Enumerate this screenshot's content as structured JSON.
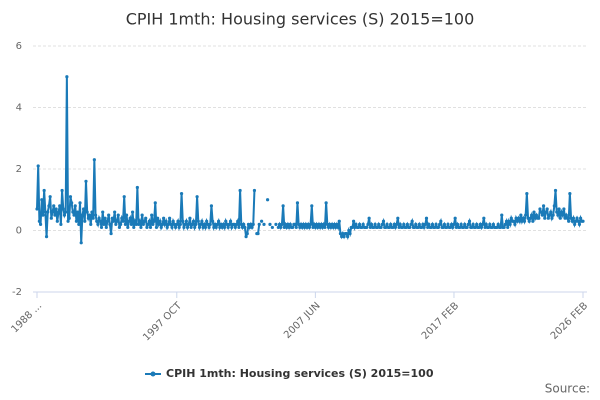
{
  "chart_data": {
    "type": "line",
    "title": "CPIH 1mth: Housing services (S) 2015=100",
    "categories": [
      "1988 ...",
      null,
      null,
      null,
      null,
      null,
      null,
      null,
      null,
      null,
      null,
      null,
      null,
      null,
      null,
      null,
      null,
      null,
      null,
      null,
      null,
      null,
      null,
      null,
      null,
      null,
      null,
      null,
      null,
      null,
      null,
      null,
      null,
      null,
      null,
      null,
      null,
      null,
      null,
      null,
      null,
      null,
      null,
      null,
      null,
      null,
      null,
      null,
      null,
      null,
      null,
      null,
      null,
      null,
      null,
      null,
      null,
      null,
      null,
      null,
      null,
      null,
      null,
      null,
      null,
      null,
      null,
      null,
      null,
      null,
      null,
      null,
      null,
      null,
      null,
      null,
      null,
      null,
      null,
      null,
      null,
      null,
      null,
      null,
      null,
      null,
      null,
      null,
      null,
      null,
      null,
      null,
      null,
      null,
      null,
      null,
      null,
      null,
      null,
      null,
      null,
      null,
      null,
      null,
      null,
      null,
      null,
      null,
      null,
      null,
      null,
      null,
      null,
      null,
      null,
      null,
      null,
      "1997 OCT",
      null,
      null,
      null,
      null,
      null,
      null,
      null,
      null,
      null,
      null,
      null,
      null,
      null,
      null,
      null,
      null,
      null,
      null,
      null,
      null,
      null,
      null,
      null,
      null,
      null,
      null,
      null,
      null,
      null,
      null,
      null,
      null,
      null,
      null,
      null,
      null,
      null,
      null,
      null,
      null,
      null,
      null,
      null,
      null,
      null,
      null,
      null,
      null,
      null,
      null,
      null,
      null,
      null,
      null,
      null,
      null,
      null,
      null,
      null,
      null,
      null,
      null,
      null,
      null,
      null,
      null,
      null,
      null,
      null,
      null,
      null,
      null,
      null,
      null,
      null,
      null,
      null,
      null,
      null,
      null,
      null,
      null,
      null,
      null,
      null,
      null,
      null,
      null,
      null,
      null,
      null,
      null,
      null,
      null,
      null,
      null,
      null,
      null,
      null,
      null,
      null,
      null,
      null,
      null,
      null,
      null,
      null,
      null,
      null,
      null,
      null,
      null,
      null,
      null,
      null,
      "2007 JUN",
      null,
      null,
      null,
      null,
      null,
      null,
      null,
      null,
      null,
      null,
      null,
      null,
      null,
      null,
      null,
      null,
      null,
      null,
      null,
      null,
      null,
      null,
      null,
      null,
      null,
      null,
      null,
      null,
      null,
      null,
      null,
      null,
      null,
      null,
      null,
      null,
      null,
      null,
      null,
      null,
      null,
      null,
      null,
      null,
      null,
      null,
      null,
      null,
      null,
      null,
      null,
      null,
      null,
      null,
      null,
      null,
      null,
      null,
      null,
      null,
      null,
      null,
      null,
      null,
      null,
      null,
      null,
      null,
      null,
      null,
      null,
      null,
      null,
      null,
      null,
      null,
      null,
      null,
      null,
      null,
      null,
      null,
      null,
      null,
      null,
      null,
      null,
      null,
      null,
      null,
      null,
      null,
      null,
      null,
      null,
      null,
      null,
      null,
      null,
      null,
      null,
      null,
      null,
      null,
      null,
      null,
      null,
      null,
      null,
      null,
      null,
      null,
      null,
      null,
      null,
      "2017 FEB",
      null,
      null,
      null,
      null,
      null,
      null,
      null,
      null,
      null,
      null,
      null,
      null,
      null,
      null,
      null,
      null,
      null,
      null,
      null,
      null,
      null,
      null,
      null,
      null,
      null,
      null,
      null,
      null,
      null,
      null,
      null,
      null,
      null,
      null,
      null,
      null,
      null,
      null,
      null,
      null,
      null,
      null,
      null,
      null,
      null,
      null,
      null,
      null,
      null,
      null,
      null,
      null,
      null,
      null,
      null,
      null,
      null,
      null,
      null,
      null,
      null,
      null,
      null,
      null,
      null,
      null,
      null,
      null,
      null,
      null,
      null,
      null,
      null,
      null,
      null,
      null,
      null,
      null,
      null,
      null,
      null,
      null,
      null,
      null,
      null,
      null,
      null,
      null,
      null,
      null,
      null,
      null,
      null,
      null,
      null,
      null,
      null,
      null,
      null,
      null,
      null,
      null,
      null,
      null,
      null,
      null,
      null,
      "2026 FEB"
    ],
    "series": [
      {
        "name": "CPIH 1mth: Housing services (S) 2015=100",
        "color": "#1a7ab8",
        "values": [
          0.7,
          2.1,
          0.3,
          0.2,
          1.0,
          0.5,
          1.3,
          0.6,
          -0.2,
          0.6,
          0.8,
          1.1,
          0.4,
          0.6,
          0.8,
          0.5,
          0.7,
          0.3,
          0.6,
          0.8,
          0.2,
          1.3,
          0.7,
          0.5,
          0.6,
          5.0,
          0.3,
          0.4,
          1.1,
          0.9,
          0.6,
          0.5,
          0.8,
          0.3,
          0.6,
          0.2,
          0.9,
          -0.4,
          0.5,
          0.7,
          0.3,
          1.6,
          0.6,
          0.4,
          0.5,
          0.2,
          0.6,
          0.4,
          2.3,
          0.5,
          0.3,
          0.2,
          0.4,
          0.3,
          0.1,
          0.6,
          0.2,
          0.4,
          0.1,
          0.3,
          0.5,
          0.2,
          -0.1,
          0.4,
          0.3,
          0.6,
          0.2,
          0.3,
          0.5,
          0.1,
          0.2,
          0.4,
          0.3,
          1.1,
          0.2,
          0.5,
          0.1,
          0.3,
          0.4,
          0.2,
          0.6,
          0.1,
          0.3,
          0.2,
          1.4,
          0.2,
          0.3,
          0.1,
          0.5,
          0.2,
          0.3,
          0.4,
          0.1,
          0.2,
          0.3,
          0.1,
          0.5,
          0.2,
          0.3,
          0.9,
          0.1,
          0.4,
          0.2,
          0.3,
          0.1,
          0.2,
          0.4,
          0.2,
          0.3,
          0.1,
          0.2,
          0.4,
          0.2,
          0.1,
          0.3,
          0.2,
          0.1,
          0.2,
          0.3,
          0.1,
          0.2,
          1.2,
          0.3,
          0.1,
          0.2,
          0.3,
          0.1,
          0.2,
          0.4,
          0.1,
          0.2,
          0.3,
          0.1,
          0.2,
          1.1,
          0.3,
          0.1,
          0.2,
          0.3,
          0.1,
          0.2,
          0.1,
          0.3,
          0.2,
          0.1,
          0.2,
          0.8,
          0.3,
          0.1,
          0.2,
          0.1,
          0.2,
          0.3,
          0.1,
          0.2,
          0.1,
          0.2,
          0.1,
          0.3,
          0.2,
          0.1,
          0.2,
          0.3,
          0.1,
          0.2,
          0.2,
          0.1,
          0.2,
          0.3,
          0.1,
          1.3,
          0.2,
          0.1,
          0.2,
          0.1,
          -0.2,
          -0.1,
          0.2,
          0.1,
          0.2,
          0.1,
          0.2,
          1.3,
          null,
          -0.1,
          -0.1,
          0.2,
          null,
          0.3,
          null,
          0.2,
          null,
          null,
          1.0,
          null,
          0.2,
          null,
          0.1,
          null,
          null,
          0.2,
          null,
          0.1,
          0.2,
          0.1,
          0.2,
          0.8,
          0.1,
          0.2,
          0.1,
          0.2,
          0.1,
          0.2,
          0.1,
          0.1,
          0.2,
          0.2,
          0.1,
          0.9,
          0.2,
          0.1,
          0.2,
          0.1,
          0.2,
          0.1,
          0.2,
          0.1,
          0.2,
          0.1,
          0.2,
          0.8,
          0.1,
          0.2,
          0.1,
          0.2,
          0.1,
          0.2,
          0.1,
          0.2,
          0.1,
          0.2,
          0.1,
          0.9,
          0.2,
          0.1,
          0.2,
          0.1,
          0.2,
          0.1,
          0.2,
          0.1,
          0.2,
          0.1,
          0.3,
          -0.1,
          -0.2,
          -0.1,
          -0.2,
          -0.1,
          -0.1,
          -0.2,
          0.0,
          -0.1,
          0.1,
          0.1,
          0.3,
          0.1,
          0.2,
          0.1,
          0.1,
          0.2,
          0.1,
          0.1,
          0.2,
          0.1,
          0.1,
          0.1,
          0.2,
          0.4,
          0.1,
          0.2,
          0.1,
          0.1,
          0.2,
          0.1,
          0.1,
          0.2,
          0.1,
          0.1,
          0.2,
          0.3,
          0.1,
          0.1,
          0.2,
          0.1,
          0.1,
          0.2,
          0.1,
          0.1,
          0.2,
          0.1,
          0.2,
          0.4,
          0.1,
          0.2,
          0.1,
          0.1,
          0.2,
          0.1,
          0.1,
          0.2,
          0.1,
          0.1,
          0.2,
          0.3,
          0.1,
          0.1,
          0.2,
          0.1,
          0.1,
          0.2,
          0.1,
          0.1,
          0.2,
          0.1,
          0.2,
          0.4,
          0.1,
          0.2,
          0.1,
          0.1,
          0.2,
          0.1,
          0.1,
          0.2,
          0.1,
          0.1,
          0.2,
          0.3,
          0.1,
          0.1,
          0.2,
          0.1,
          0.1,
          0.2,
          0.1,
          0.1,
          0.2,
          0.1,
          0.2,
          0.4,
          0.1,
          0.2,
          0.1,
          0.1,
          0.2,
          0.1,
          0.1,
          0.2,
          0.1,
          0.1,
          0.2,
          0.3,
          0.1,
          0.1,
          0.2,
          0.1,
          0.1,
          0.2,
          0.1,
          0.1,
          0.2,
          0.1,
          0.2,
          0.4,
          0.1,
          0.2,
          0.1,
          0.1,
          0.2,
          0.1,
          0.1,
          0.2,
          0.1,
          0.1,
          0.1,
          0.2,
          0.1,
          0.1,
          0.5,
          0.1,
          0.1,
          0.2,
          0.3,
          0.1,
          0.3,
          0.2,
          0.4,
          0.3,
          0.3,
          0.2,
          0.4,
          0.3,
          0.4,
          0.3,
          0.5,
          0.3,
          0.4,
          0.3,
          0.5,
          1.2,
          0.4,
          0.3,
          0.4,
          0.5,
          0.3,
          0.6,
          0.4,
          0.5,
          0.4,
          0.4,
          0.7,
          0.6,
          0.5,
          0.8,
          0.4,
          0.6,
          0.7,
          0.4,
          0.5,
          0.6,
          0.4,
          0.5,
          0.8,
          1.3,
          0.6,
          0.5,
          0.7,
          0.4,
          0.6,
          0.5,
          0.7,
          0.4,
          0.5,
          0.4,
          0.3,
          1.2,
          0.4,
          0.3,
          0.4,
          0.2,
          0.3,
          0.4,
          0.3,
          0.2,
          0.4,
          0.3,
          0.3
        ]
      }
    ],
    "ylim": [
      -2,
      6
    ],
    "yticks": [
      -2,
      0,
      2,
      4,
      6
    ],
    "grid": true,
    "source": "Source:"
  }
}
